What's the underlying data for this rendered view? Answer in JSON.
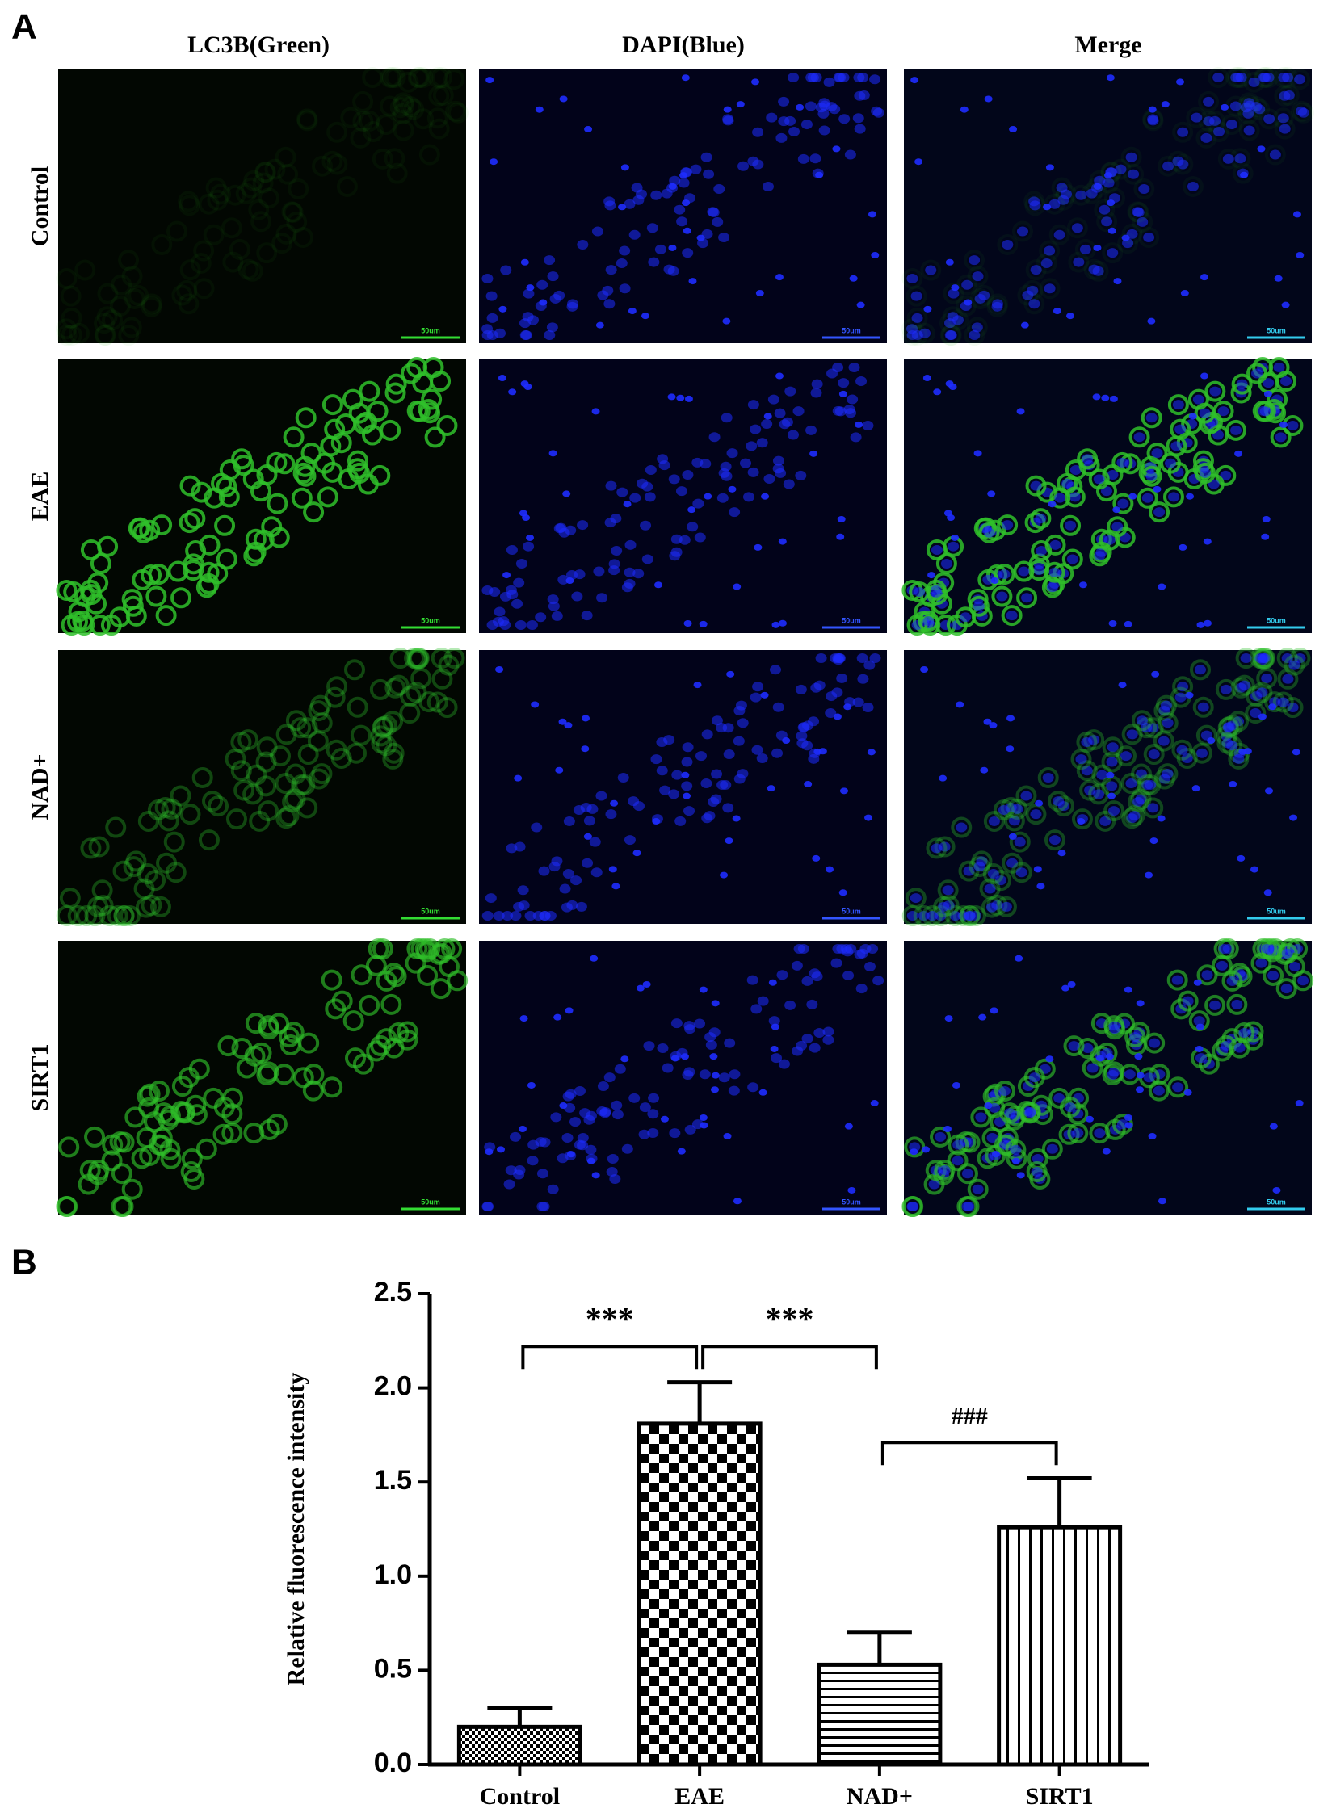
{
  "panel_a": {
    "label": "A",
    "columns": [
      "LC3B(Green)",
      "DAPI(Blue)",
      "Merge"
    ],
    "rows": [
      "Control",
      "EAE",
      "NAD+",
      "SIRT1"
    ],
    "scale_bar": "50um"
  },
  "chart_data": {
    "type": "bar",
    "panel_label": "B",
    "y_label": "Relative fluorescence intensity",
    "categories": [
      "Control",
      "EAE",
      "NAD+",
      "SIRT1"
    ],
    "values": [
      0.2,
      1.81,
      0.53,
      1.26
    ],
    "errors": [
      0.1,
      0.22,
      0.17,
      0.26
    ],
    "patterns": [
      "dots",
      "checker",
      "hstripes",
      "vstripes"
    ],
    "color": "#000000",
    "ylim": [
      0,
      2.5
    ],
    "yticks": [
      {
        "value": 0,
        "label": "0.0"
      },
      0.5,
      {
        "value": 1,
        "label": "1.0"
      },
      1.5,
      {
        "value": 2,
        "label": "2.0"
      },
      2.5
    ],
    "annotations": [
      {
        "text": "***",
        "from": 0,
        "to": 1,
        "y": 2.22
      },
      {
        "text": "***",
        "from": 1,
        "to": 2,
        "y": 2.22
      },
      {
        "text": "###",
        "from": 2,
        "to": 3,
        "y": 1.71
      }
    ]
  }
}
